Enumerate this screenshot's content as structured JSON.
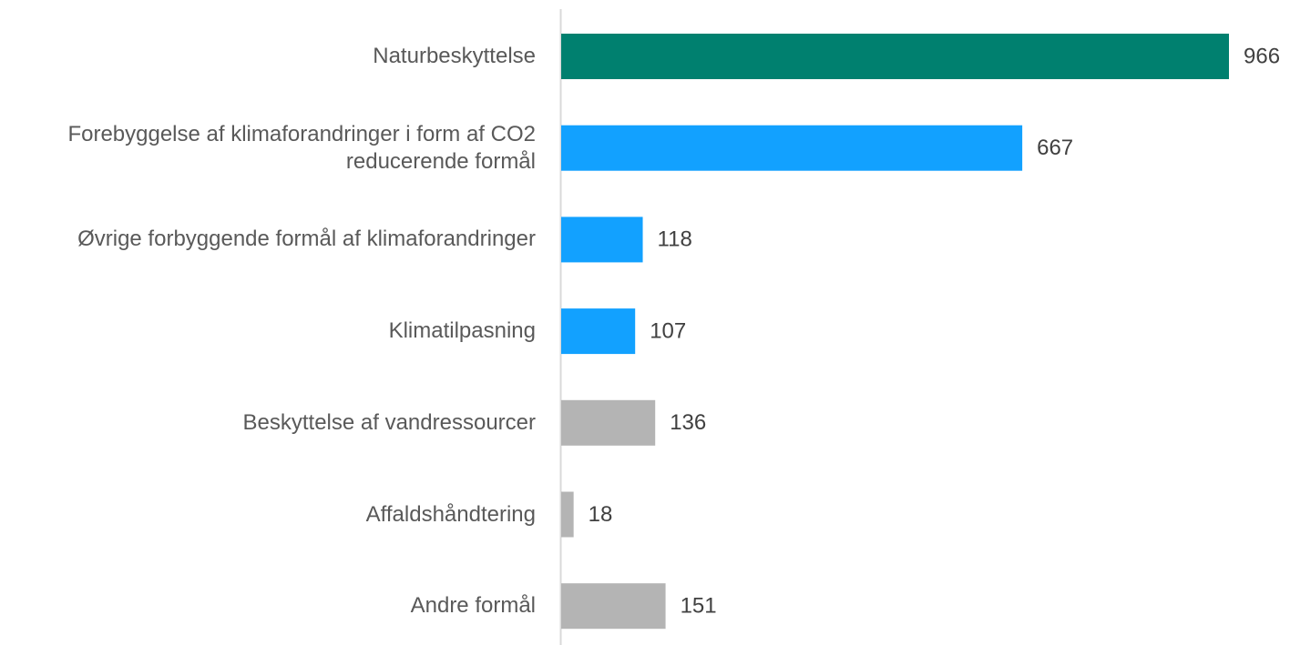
{
  "chart_data": {
    "type": "barh",
    "categories": [
      "Naturbeskyttelse",
      "Forebyggelse af klimaforandringer i form af CO2\nreducerende formål",
      "Øvrige forbyggende formål af klimaforandringer",
      "Klimatilpasning",
      "Beskyttelse af vandressourcer",
      "Affaldshåndtering",
      "Andre formål"
    ],
    "values": [
      966,
      667,
      118,
      107,
      136,
      18,
      151
    ],
    "colors": [
      "#00806f",
      "#12a1ff",
      "#12a1ff",
      "#12a1ff",
      "#b4b4b4",
      "#b4b4b4",
      "#b4b4b4"
    ]
  }
}
